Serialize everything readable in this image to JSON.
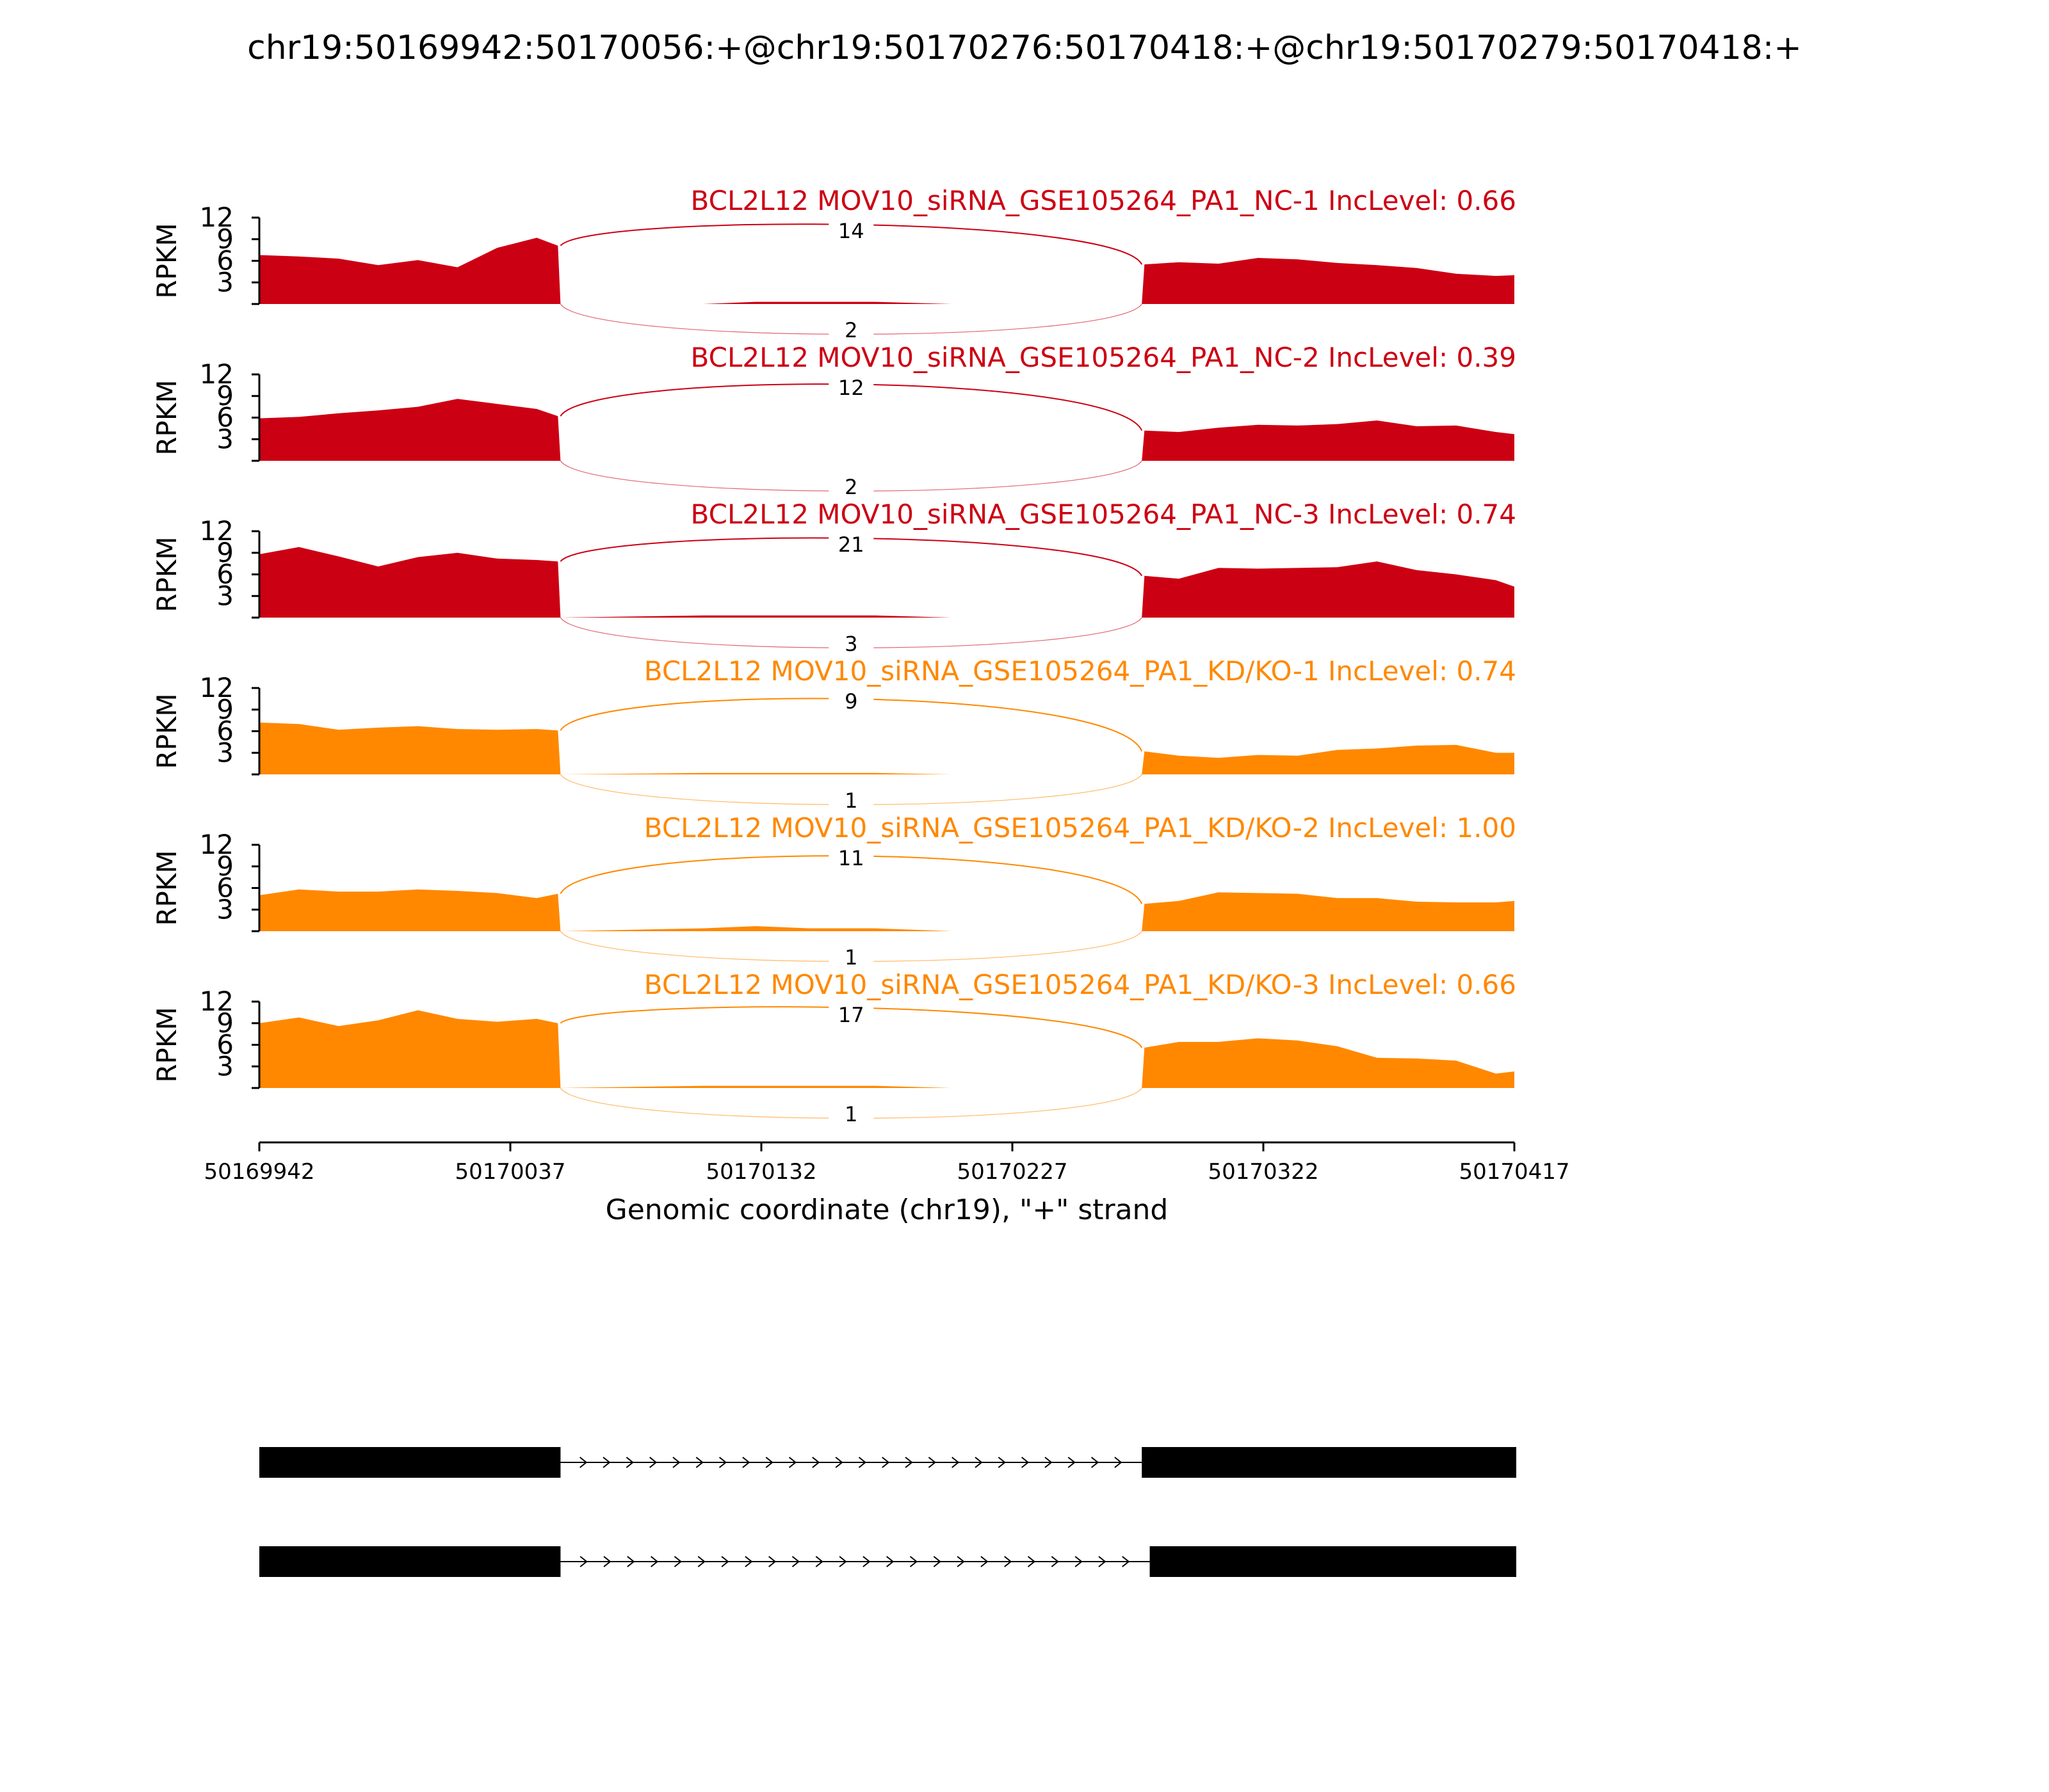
{
  "chart_data": {
    "type": "area",
    "title": "chr19:50169942:50170056:+@chr19:50170276:50170418:+@chr19:50170279:50170418:+",
    "xlabel": "Genomic coordinate (chr19), \"+\" strand",
    "ylabel": "RPKM",
    "xlim": [
      50169942,
      50170417
    ],
    "x_ticks": [
      "50169942",
      "50170037",
      "50170132",
      "50170227",
      "50170322",
      "50170417"
    ],
    "ylim": [
      0,
      12
    ],
    "y_ticks": [
      "3",
      "6",
      "9",
      "12"
    ],
    "grid": false,
    "colors": {
      "NC": "#cc0013",
      "KD/KO": "#ff8800",
      "structure": "#000000"
    },
    "profile_x": [
      50169942,
      50169957,
      50169972,
      50169987,
      50170002,
      50170017,
      50170032,
      50170047,
      50170055,
      50170056,
      50170110,
      50170130,
      50170150,
      50170175,
      50170204,
      50170276,
      50170277,
      50170290,
      50170305,
      50170320,
      50170335,
      50170350,
      50170365,
      50170380,
      50170395,
      50170410,
      50170417
    ],
    "series": [
      {
        "name": "BCL2L12 MOV10_siRNA_GSE105264_PA1_NC-1 IncLevel: 0.66",
        "group": "NC",
        "values": [
          6.8,
          6.6,
          6.3,
          5.4,
          6.1,
          5.1,
          7.8,
          9.2,
          8.1,
          0,
          0,
          0.3,
          0.3,
          0.3,
          0,
          0,
          5.5,
          5.8,
          5.6,
          6.4,
          6.2,
          5.7,
          5.4,
          5.0,
          4.2,
          3.9,
          4.0
        ],
        "junctions": [
          14,
          2
        ]
      },
      {
        "name": "BCL2L12 MOV10_siRNA_GSE105264_PA1_NC-2 IncLevel: 0.39",
        "group": "NC",
        "values": [
          5.9,
          6.1,
          6.6,
          7.0,
          7.5,
          8.6,
          7.9,
          7.2,
          6.2,
          0,
          0,
          0,
          0,
          0,
          0,
          0,
          4.2,
          4.0,
          4.6,
          5.0,
          4.9,
          5.1,
          5.6,
          4.8,
          4.9,
          4.0,
          3.7
        ],
        "junctions": [
          12,
          2
        ]
      },
      {
        "name": "BCL2L12 MOV10_siRNA_GSE105264_PA1_NC-3 IncLevel: 0.74",
        "group": "NC",
        "values": [
          8.8,
          9.8,
          8.5,
          7.1,
          8.4,
          9.0,
          8.2,
          8.0,
          7.8,
          0,
          0.3,
          0.3,
          0.3,
          0.3,
          0,
          0,
          5.8,
          5.4,
          6.9,
          6.8,
          6.9,
          7.0,
          7.8,
          6.6,
          6.0,
          5.2,
          4.3
        ],
        "junctions": [
          21,
          3
        ]
      },
      {
        "name": "BCL2L12 MOV10_siRNA_GSE105264_PA1_KD/KO-1 IncLevel: 0.74",
        "group": "KD/KO",
        "values": [
          7.2,
          7.0,
          6.2,
          6.5,
          6.7,
          6.3,
          6.2,
          6.3,
          6.1,
          0,
          0.2,
          0.2,
          0.2,
          0.2,
          0,
          0,
          3.2,
          2.6,
          2.3,
          2.7,
          2.6,
          3.4,
          3.6,
          4.0,
          4.1,
          3.0,
          3.0
        ],
        "junctions": [
          9,
          1
        ]
      },
      {
        "name": "BCL2L12 MOV10_siRNA_GSE105264_PA1_KD/KO-2 IncLevel: 1.00",
        "group": "KD/KO",
        "values": [
          5.0,
          5.8,
          5.5,
          5.5,
          5.8,
          5.6,
          5.3,
          4.6,
          5.2,
          0,
          0.4,
          0.7,
          0.4,
          0.4,
          0,
          0,
          3.8,
          4.2,
          5.4,
          5.3,
          5.2,
          4.6,
          4.6,
          4.1,
          4.0,
          4.0,
          4.2
        ],
        "junctions": [
          11,
          1
        ]
      },
      {
        "name": "BCL2L12 MOV10_siRNA_GSE105264_PA1_KD/KO-3 IncLevel: 0.66",
        "group": "KD/KO",
        "values": [
          9.0,
          9.8,
          8.6,
          9.4,
          10.8,
          9.6,
          9.2,
          9.6,
          9.0,
          0,
          0.3,
          0.3,
          0.3,
          0.3,
          0,
          0,
          5.6,
          6.4,
          6.4,
          6.9,
          6.6,
          5.8,
          4.2,
          4.1,
          3.8,
          2.0,
          2.3
        ],
        "junctions": [
          17,
          1
        ]
      }
    ],
    "isoforms": [
      {
        "exons": [
          [
            50169942,
            50170056
          ],
          [
            50170276,
            50170418
          ]
        ]
      },
      {
        "exons": [
          [
            50169942,
            50170056
          ],
          [
            50170279,
            50170418
          ]
        ]
      }
    ]
  }
}
